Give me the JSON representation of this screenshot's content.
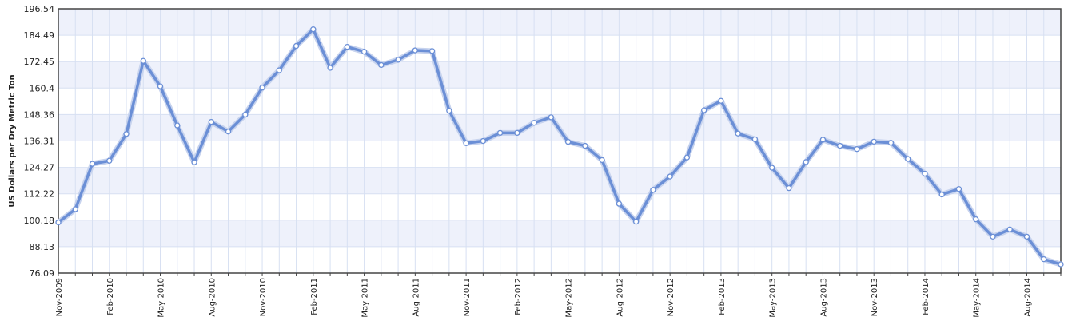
{
  "chart_data": {
    "type": "line",
    "ylabel": "US Dollars per Dry Metric Ton",
    "xlabel": "",
    "ylim": [
      76.09,
      196.54
    ],
    "y_ticks": [
      "196.54",
      "184.49",
      "172.45",
      "160.4",
      "148.36",
      "136.31",
      "124.27",
      "112.22",
      "100.18",
      "88.13",
      "76.09"
    ],
    "x_tick_labels": [
      "Nov-2009",
      "Feb-2010",
      "May-2010",
      "Aug-2010",
      "Nov-2010",
      "Feb-2011",
      "May-2011",
      "Aug-2011",
      "Nov-2011",
      "Feb-2012",
      "May-2012",
      "Aug-2012",
      "Nov-2012",
      "Feb-2013",
      "May-2013",
      "Aug-2013",
      "Nov-2013",
      "Feb-2014",
      "May-2014",
      "Aug-2014"
    ],
    "grid": true,
    "colors": {
      "line": "#6b8fd6",
      "marker_fill": "#ffffff",
      "band": "#eef1fb",
      "grid": "#d7e0f2",
      "frame": "#444444"
    },
    "series": [
      {
        "values": [
          {
            "x": "Nov-2009",
            "y": 99.2
          },
          {
            "x": "Dec-2009",
            "y": 105.2
          },
          {
            "x": "Jan-2010",
            "y": 125.9
          },
          {
            "x": "Feb-2010",
            "y": 127.3
          },
          {
            "x": "Mar-2010",
            "y": 139.5
          },
          {
            "x": "Apr-2010",
            "y": 172.8
          },
          {
            "x": "May-2010",
            "y": 161.2
          },
          {
            "x": "Jun-2010",
            "y": 143.4
          },
          {
            "x": "Jul-2010",
            "y": 126.6
          },
          {
            "x": "Aug-2010",
            "y": 145.0
          },
          {
            "x": "Sep-2010",
            "y": 140.6
          },
          {
            "x": "Oct-2010",
            "y": 148.3
          },
          {
            "x": "Nov-2010",
            "y": 160.6
          },
          {
            "x": "Dec-2010",
            "y": 168.5
          },
          {
            "x": "Jan-2011",
            "y": 179.6
          },
          {
            "x": "Feb-2011",
            "y": 187.2
          },
          {
            "x": "Mar-2011",
            "y": 169.6
          },
          {
            "x": "Apr-2011",
            "y": 179.2
          },
          {
            "x": "May-2011",
            "y": 177.0
          },
          {
            "x": "Jun-2011",
            "y": 170.9
          },
          {
            "x": "Jul-2011",
            "y": 173.3
          },
          {
            "x": "Aug-2011",
            "y": 177.6
          },
          {
            "x": "Sep-2011",
            "y": 177.3
          },
          {
            "x": "Oct-2011",
            "y": 150.1
          },
          {
            "x": "Nov-2011",
            "y": 135.3
          },
          {
            "x": "Dec-2011",
            "y": 136.3
          },
          {
            "x": "Jan-2012",
            "y": 140.0
          },
          {
            "x": "Feb-2012",
            "y": 140.0
          },
          {
            "x": "Mar-2012",
            "y": 144.6
          },
          {
            "x": "Apr-2012",
            "y": 147.1
          },
          {
            "x": "May-2012",
            "y": 135.9
          },
          {
            "x": "Jun-2012",
            "y": 134.1
          },
          {
            "x": "Jul-2012",
            "y": 127.6
          },
          {
            "x": "Aug-2012",
            "y": 107.7
          },
          {
            "x": "Sep-2012",
            "y": 99.5
          },
          {
            "x": "Oct-2012",
            "y": 114.0
          },
          {
            "x": "Nov-2012",
            "y": 120.1
          },
          {
            "x": "Dec-2012",
            "y": 128.8
          },
          {
            "x": "Jan-2013",
            "y": 150.3
          },
          {
            "x": "Feb-2013",
            "y": 154.6
          },
          {
            "x": "Mar-2013",
            "y": 139.7
          },
          {
            "x": "Apr-2013",
            "y": 137.1
          },
          {
            "x": "May-2013",
            "y": 124.1
          },
          {
            "x": "Jun-2013",
            "y": 114.8
          },
          {
            "x": "Jul-2013",
            "y": 126.7
          },
          {
            "x": "Aug-2013",
            "y": 136.9
          },
          {
            "x": "Sep-2013",
            "y": 134.1
          },
          {
            "x": "Oct-2013",
            "y": 132.6
          },
          {
            "x": "Nov-2013",
            "y": 136.0
          },
          {
            "x": "Dec-2013",
            "y": 135.5
          },
          {
            "x": "Jan-2014",
            "y": 128.1
          },
          {
            "x": "Feb-2014",
            "y": 121.4
          },
          {
            "x": "Mar-2014",
            "y": 111.9
          },
          {
            "x": "Apr-2014",
            "y": 114.4
          },
          {
            "x": "May-2014",
            "y": 100.6
          },
          {
            "x": "Jun-2014",
            "y": 92.7
          },
          {
            "x": "Jul-2014",
            "y": 96.0
          },
          {
            "x": "Aug-2014",
            "y": 92.7
          },
          {
            "x": "Sep-2014",
            "y": 82.4
          },
          {
            "x": "Oct-2014",
            "y": 80.1
          }
        ]
      }
    ]
  }
}
